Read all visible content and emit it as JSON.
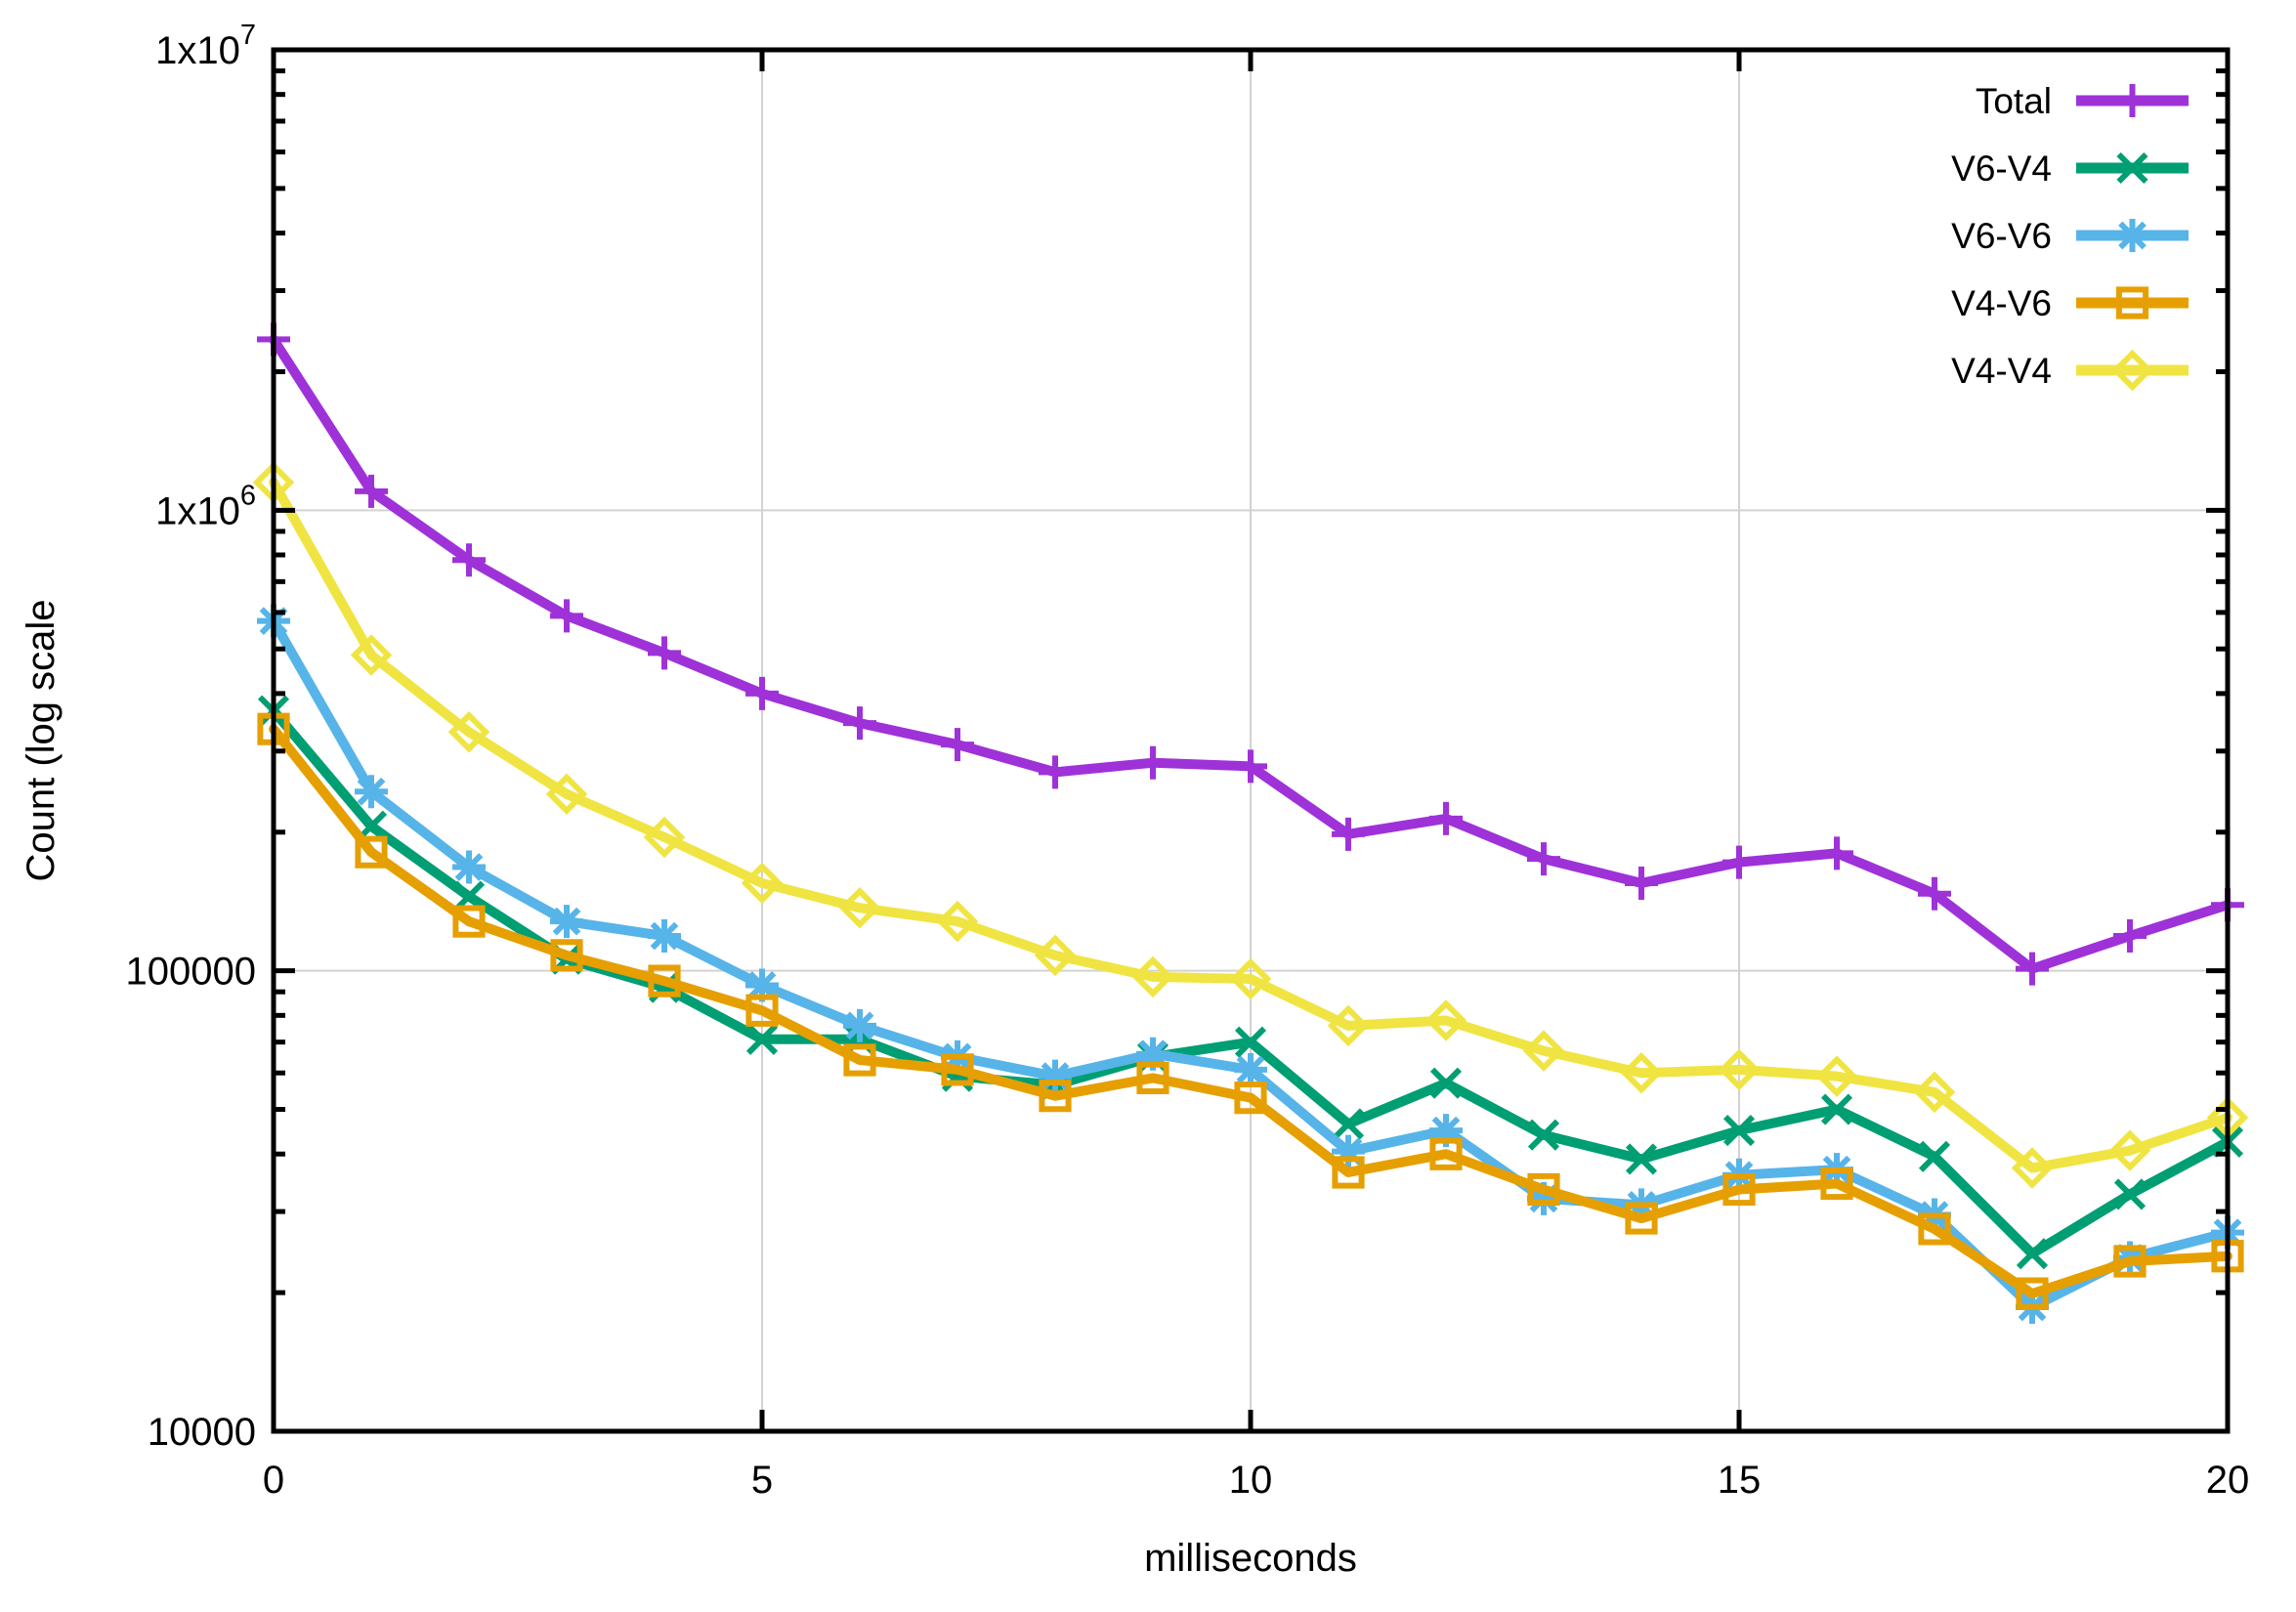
{
  "chart_data": {
    "type": "line",
    "title": "",
    "xlabel": "milliseconds",
    "ylabel": "Count (log scale",
    "x_axis": {
      "min": 0,
      "max": 20,
      "major_ticks": [
        0,
        5,
        10,
        15,
        20
      ],
      "tick_labels": [
        "0",
        "5",
        "10",
        "15",
        "20"
      ]
    },
    "y_axis": {
      "scale": "log10",
      "min": 10000,
      "max": 10000000,
      "major_ticks": [
        {
          "value": 10000000,
          "label": "1x10",
          "sup": "7"
        },
        {
          "value": 1000000,
          "label": "1x10",
          "sup": "6"
        },
        {
          "value": 100000,
          "label": "100000",
          "sup": ""
        },
        {
          "value": 10000,
          "label": "10000",
          "sup": ""
        }
      ],
      "minor_tick_mantissas": [
        2,
        3,
        4,
        5,
        6,
        7,
        8,
        9
      ]
    },
    "grid": {
      "enabled": true,
      "color": "#d2d2d2"
    },
    "legend": {
      "position": "top-right",
      "entries": [
        "Total",
        "V6-V4",
        "V6-V6",
        "V4-V6",
        "V4-V4"
      ]
    },
    "x": [
      0,
      1,
      2,
      3,
      4,
      5,
      6,
      7,
      8,
      9,
      10,
      11,
      12,
      13,
      14,
      15,
      16,
      17,
      18,
      19,
      20
    ],
    "series": [
      {
        "name": "Total",
        "color": "#9e32d8",
        "marker": "plus",
        "values": [
          2350000,
          1100000,
          780000,
          590000,
          490000,
          400000,
          345000,
          310000,
          270000,
          283000,
          278000,
          198000,
          214000,
          175000,
          155000,
          172000,
          180000,
          147000,
          101000,
          119000,
          139000
        ]
      },
      {
        "name": "V6-V4",
        "color": "#009e73",
        "marker": "cross",
        "values": [
          367000,
          206000,
          145000,
          106000,
          92000,
          71000,
          71000,
          59000,
          56500,
          65000,
          70000,
          46500,
          57000,
          44000,
          39000,
          45000,
          50000,
          39500,
          24300,
          32700,
          42500
        ]
      },
      {
        "name": "V6-V6",
        "color": "#56b4e9",
        "marker": "asterisk",
        "values": [
          575000,
          245000,
          168000,
          128000,
          119000,
          93000,
          76000,
          65000,
          59000,
          66000,
          61000,
          40500,
          45000,
          32000,
          31000,
          36000,
          37000,
          29500,
          18600,
          23800,
          27000
        ]
      },
      {
        "name": "V4-V6",
        "color": "#e69f00",
        "marker": "square",
        "values": [
          335000,
          181000,
          128000,
          108000,
          95000,
          82000,
          64000,
          61000,
          53500,
          58500,
          53000,
          36500,
          40000,
          33500,
          29000,
          33500,
          34500,
          27500,
          19900,
          23400,
          24000
        ]
      },
      {
        "name": "V4-V4",
        "color": "#f0e442",
        "marker": "diamond",
        "values": [
          1150000,
          485000,
          330000,
          242000,
          195000,
          155000,
          137000,
          128000,
          108000,
          97000,
          96000,
          76000,
          78000,
          67000,
          60000,
          61000,
          59000,
          54500,
          37300,
          40700,
          48000
        ]
      }
    ]
  }
}
